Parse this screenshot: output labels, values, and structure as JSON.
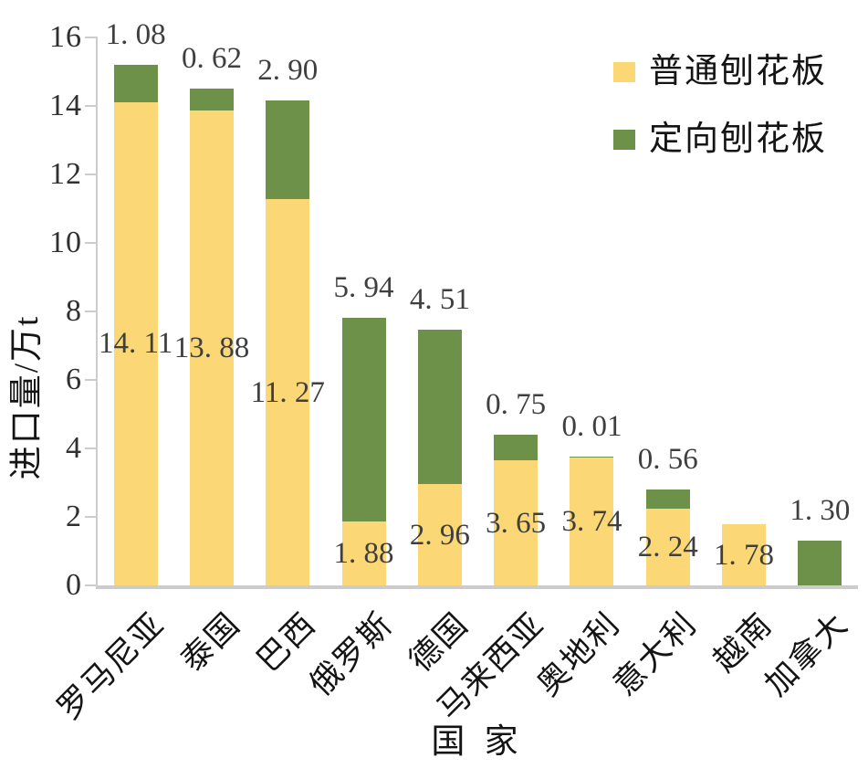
{
  "chart_data": {
    "type": "bar",
    "stacked": true,
    "title": "",
    "xlabel": "国 家",
    "ylabel": "进口量/万t",
    "ylim": [
      0,
      16
    ],
    "ytick_step": 2,
    "yticks": [
      0,
      2,
      4,
      6,
      8,
      10,
      12,
      14,
      16
    ],
    "grid": false,
    "legend_position": "top-right",
    "categories": [
      "罗马尼亚",
      "泰国",
      "巴西",
      "俄罗斯",
      "德国",
      "马来西亚",
      "奥地利",
      "意大利",
      "越南",
      "加拿大"
    ],
    "series": [
      {
        "name": "普通刨花板",
        "color": "#FBD875",
        "label_placement": "inside-center",
        "values": [
          14.11,
          13.88,
          11.27,
          1.88,
          2.96,
          3.65,
          3.74,
          2.24,
          1.78,
          0
        ],
        "labels": [
          "14. 11",
          "13. 88",
          "11. 27",
          "1. 88",
          "2. 96",
          "3. 65",
          "3. 74",
          "2. 24",
          "1. 78",
          null
        ]
      },
      {
        "name": "定向刨花板",
        "color": "#6D9148",
        "label_placement": "above-total",
        "values": [
          1.08,
          0.62,
          2.9,
          5.94,
          4.51,
          0.75,
          0.01,
          0.56,
          0,
          1.3
        ],
        "labels": [
          "1. 08",
          "0. 62",
          "2. 90",
          "5. 94",
          "4. 51",
          "0. 75",
          "0. 01",
          "0. 56",
          null,
          "1. 30"
        ]
      }
    ],
    "colors": {
      "axis_line": "#cccccc",
      "number_text": "#3f3f3f",
      "label_text": "#141414",
      "background": "#ffffff"
    }
  }
}
